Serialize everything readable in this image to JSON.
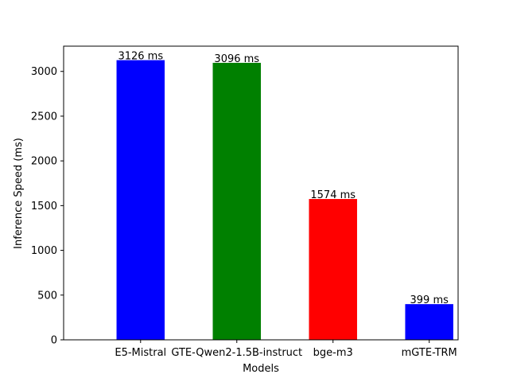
{
  "chart_data": {
    "type": "bar",
    "categories": [
      "E5-Mistral",
      "GTE-Qwen2-1.5B-instruct",
      "bge-m3",
      "mGTE-TRM"
    ],
    "values": [
      3126,
      3096,
      1574,
      399
    ],
    "data_labels": [
      "3126 ms",
      "3096 ms",
      "1574 ms",
      "399 ms"
    ],
    "colors": [
      "#0000ff",
      "#008000",
      "#ff0000",
      "#0000ff"
    ],
    "title": "",
    "xlabel": "Models",
    "ylabel": "Inference Speed (ms)",
    "ylim": [
      0,
      3282.3
    ],
    "yticks": [
      0,
      500,
      1000,
      1500,
      2000,
      2500,
      3000
    ],
    "ytick_labels": [
      "0",
      "500",
      "1000",
      "1500",
      "2000",
      "2500",
      "3000"
    ],
    "grid": false,
    "legend": "none"
  }
}
